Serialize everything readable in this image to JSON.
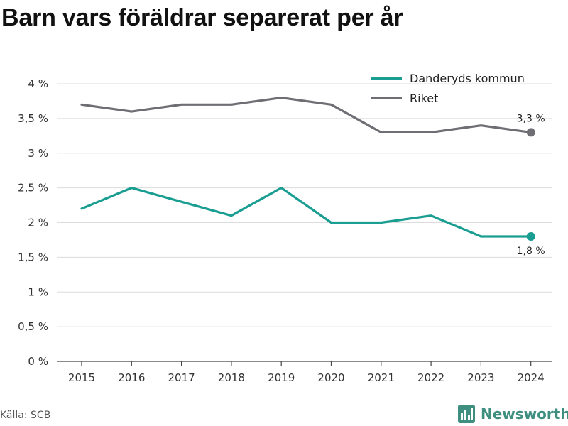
{
  "title": "Barn vars föräldrar separerat per år",
  "source": "Källa: SCB",
  "brand": {
    "name": "Newsworthy",
    "icon": "newsworthy-logo-icon"
  },
  "colors": {
    "danderyd": "#1a9e92",
    "riket": "#6e6e74",
    "grid": "#dcdcdc",
    "axis": "#444444"
  },
  "chart_data": {
    "type": "line",
    "x": [
      "2015",
      "2016",
      "2017",
      "2018",
      "2019",
      "2020",
      "2021",
      "2022",
      "2023",
      "2024"
    ],
    "series": [
      {
        "name": "Danderyds kommun",
        "color": "#1a9e92",
        "values": [
          2.2,
          2.5,
          2.3,
          2.1,
          2.5,
          2.0,
          2.0,
          2.1,
          1.8,
          1.8
        ],
        "end_label": "1,8 %"
      },
      {
        "name": "Riket",
        "color": "#6e6e74",
        "values": [
          3.7,
          3.6,
          3.7,
          3.7,
          3.8,
          3.7,
          3.3,
          3.3,
          3.4,
          3.3
        ],
        "end_label": "3,3 %"
      }
    ],
    "ylim": [
      0,
      4
    ],
    "yticks": [
      0,
      0.5,
      1,
      1.5,
      2,
      2.5,
      3,
      3.5,
      4
    ],
    "ytick_labels": [
      "0 %",
      "0,5 %",
      "1 %",
      "1,5 %",
      "2 %",
      "2,5 %",
      "3 %",
      "3,5 %",
      "4 %"
    ],
    "xlabel": "",
    "ylabel": "",
    "grid": true,
    "legend_position": "top-right"
  }
}
